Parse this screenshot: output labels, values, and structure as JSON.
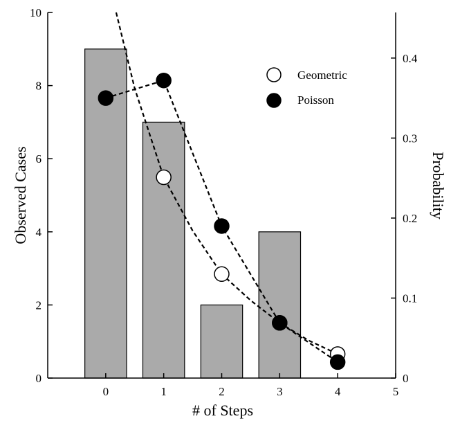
{
  "chart_data": {
    "type": "bar",
    "title": "",
    "xlabel": "# of Steps",
    "ylabel": "Observed Cases",
    "y2label": "Probability",
    "xlim": [
      -1,
      5
    ],
    "ylim": [
      0,
      10
    ],
    "y2lim": [
      0,
      0.457
    ],
    "xticks": [
      "0",
      "1",
      "2",
      "3",
      "4",
      "5"
    ],
    "yticks": [
      "0",
      "2",
      "4",
      "6",
      "8",
      "10"
    ],
    "y2ticks": [
      "0",
      "0.1",
      "0.2",
      "0.3",
      "0.4"
    ],
    "bars": {
      "x": [
        0,
        1,
        2,
        3
      ],
      "values": [
        9,
        7,
        2,
        4
      ],
      "color": "#aaaaaa"
    },
    "series": [
      {
        "name": "Geometric",
        "marker": "open-circle",
        "x": [
          1,
          2,
          3,
          4
        ],
        "values": [
          0.251,
          0.13,
          0.069,
          0.03
        ],
        "curve_x": [
          0.18,
          0.5,
          1,
          1.5,
          2,
          2.5,
          3,
          3.5,
          4
        ],
        "curve_y": [
          0.457,
          0.362,
          0.251,
          0.184,
          0.13,
          0.097,
          0.069,
          0.047,
          0.03
        ]
      },
      {
        "name": "Poisson",
        "marker": "filled-circle",
        "x": [
          0,
          1,
          2,
          3,
          4
        ],
        "values": [
          0.35,
          0.372,
          0.19,
          0.069,
          0.02
        ]
      }
    ],
    "legend_position": "top-right",
    "grid": false
  }
}
